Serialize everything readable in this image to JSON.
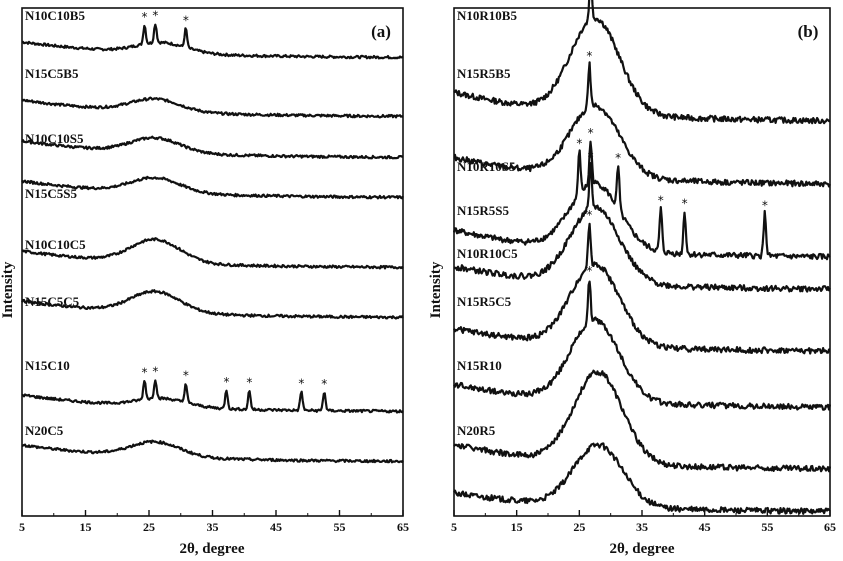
{
  "chart_data": [
    {
      "type": "line",
      "panel_label": "(a)",
      "xlabel": "2θ, degree",
      "ylabel": "Intensity",
      "xlim": [
        5,
        65
      ],
      "x_ticks": [
        5,
        15,
        25,
        35,
        45,
        55,
        65
      ],
      "y_ticks_labeled": false,
      "peak_marker": "*",
      "series": [
        {
          "name": "N10C10B5",
          "hump_center": 27,
          "hump_height": 0.25,
          "start_level": 0.85,
          "end_level": 0.0,
          "peaks": [
            24.3,
            26.0,
            30.8
          ]
        },
        {
          "name": "N15C5B5",
          "hump_center": 26,
          "hump_height": 0.3,
          "start_level": 0.9,
          "end_level": 0.0,
          "peaks": []
        },
        {
          "name": "N10C10S5",
          "hump_center": 26,
          "hump_height": 0.35,
          "start_level": 0.9,
          "end_level": 0.0,
          "peaks": []
        },
        {
          "name": "N15C5S5",
          "hump_center": 26,
          "hump_height": 0.35,
          "start_level": 0.9,
          "end_level": 0.0,
          "peaks": []
        },
        {
          "name": "N10C10C5",
          "hump_center": 26,
          "hump_height": 0.55,
          "start_level": 0.9,
          "end_level": 0.0,
          "peaks": []
        },
        {
          "name": "N15C5C5",
          "hump_center": 26,
          "hump_height": 0.5,
          "start_level": 0.9,
          "end_level": 0.0,
          "peaks": []
        },
        {
          "name": "N15C10",
          "hump_center": 27,
          "hump_height": 0.2,
          "start_level": 0.9,
          "end_level": 0.0,
          "peaks": [
            24.3,
            26.0,
            30.8,
            37.2,
            40.8,
            49.0,
            52.6
          ]
        },
        {
          "name": "N20C5",
          "hump_center": 26,
          "hump_height": 0.35,
          "start_level": 0.9,
          "end_level": 0.0,
          "peaks": []
        }
      ]
    },
    {
      "type": "line",
      "panel_label": "(b)",
      "xlabel": "2θ, degree",
      "ylabel": "Intensity",
      "xlim": [
        5,
        65
      ],
      "x_ticks": [
        5,
        15,
        25,
        35,
        45,
        55,
        65
      ],
      "y_ticks_labeled": false,
      "peak_marker": "*",
      "series": [
        {
          "name": "N10R10B5",
          "hump_center": 27.5,
          "hump_height": 1.0,
          "start_level": 0.7,
          "end_level": 0.0,
          "peaks": [
            26.8
          ]
        },
        {
          "name": "N15R5B5",
          "hump_center": 27.5,
          "hump_height": 0.75,
          "start_level": 0.65,
          "end_level": 0.0,
          "peaks": [
            26.6
          ]
        },
        {
          "name": "N10R10S5",
          "hump_center": 27.5,
          "hump_height": 0.7,
          "start_level": 0.65,
          "end_level": 0.0,
          "peaks": [
            25.0,
            26.8,
            31.2,
            38.0,
            41.8,
            54.6
          ]
        },
        {
          "name": "N15R5S5",
          "hump_center": 27.5,
          "hump_height": 0.8,
          "start_level": 0.55,
          "end_level": 0.0,
          "peaks": [
            26.8
          ]
        },
        {
          "name": "N10R10C5",
          "hump_center": 27.5,
          "hump_height": 0.85,
          "start_level": 0.55,
          "end_level": 0.0,
          "peaks": [
            26.6
          ]
        },
        {
          "name": "N15R5C5",
          "hump_center": 27.5,
          "hump_height": 0.85,
          "start_level": 0.55,
          "end_level": 0.0,
          "peaks": [
            26.6
          ]
        },
        {
          "name": "N15R10",
          "hump_center": 28,
          "hump_height": 0.95,
          "start_level": 0.6,
          "end_level": 0.0,
          "peaks": []
        },
        {
          "name": "N20R5",
          "hump_center": 28,
          "hump_height": 0.65,
          "start_level": 0.45,
          "end_level": 0.0,
          "peaks": []
        }
      ]
    }
  ]
}
